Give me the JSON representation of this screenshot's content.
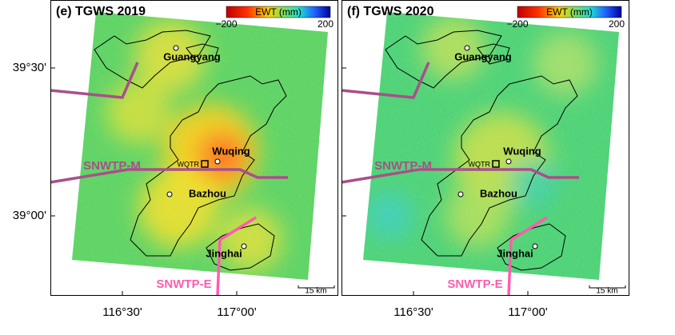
{
  "axes": {
    "y_labels": [
      "39°30'",
      "39°00'"
    ],
    "x_labels": [
      "116°30'",
      "117°00'"
    ]
  },
  "panels": [
    {
      "title": "(e) TGWS 2019",
      "colorbar": {
        "label": "EWT (mm)",
        "min": "−200",
        "max": "200"
      },
      "places": [
        "Guangyang",
        "Wuqing",
        "Bazhou",
        "Jinghai",
        "WQTR"
      ],
      "canals": [
        "SNWTP-M",
        "SNWTP-E"
      ],
      "scale_bar": "15 km"
    },
    {
      "title": "(f) TGWS 2020",
      "colorbar": {
        "label": "EWT (mm)",
        "min": "−200",
        "max": "200"
      },
      "places": [
        "Guangyang",
        "Wuqing",
        "Bazhou",
        "Jinghai",
        "WQTR"
      ],
      "canals": [
        "SNWTP-M",
        "SNWTP-E"
      ],
      "scale_bar": "15 km"
    }
  ]
}
